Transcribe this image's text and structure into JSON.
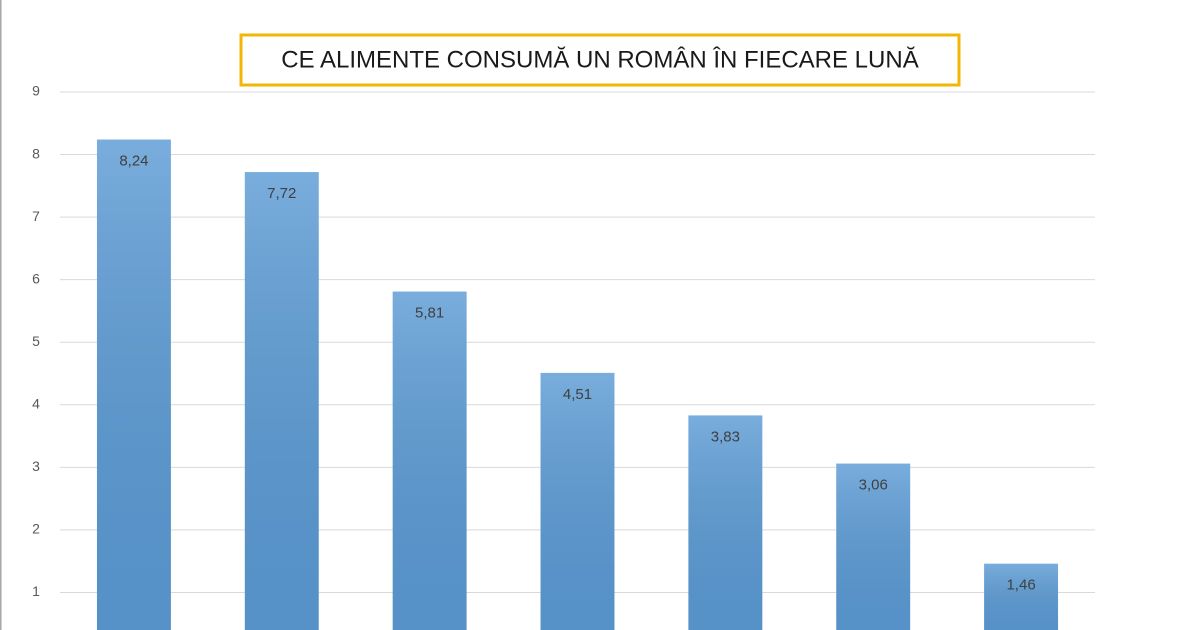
{
  "chart_data": {
    "type": "bar",
    "title": "CE ALIMENTE CONSUMĂ UN ROMÂN ÎN FIECARE LUNĂ",
    "categories": [
      null,
      null,
      null,
      null,
      null,
      null,
      null
    ],
    "values": [
      8.24,
      7.72,
      5.81,
      4.51,
      3.83,
      3.06,
      1.46
    ],
    "value_labels": [
      "8,24",
      "7,72",
      "5,81",
      "4,51",
      "3,83",
      "3,06",
      "1,46"
    ],
    "color": "#5b9bd5",
    "ylim": [
      0.4,
      9
    ],
    "yticks": [
      1,
      2,
      3,
      4,
      5,
      6,
      7,
      8,
      9
    ],
    "grid": true
  }
}
